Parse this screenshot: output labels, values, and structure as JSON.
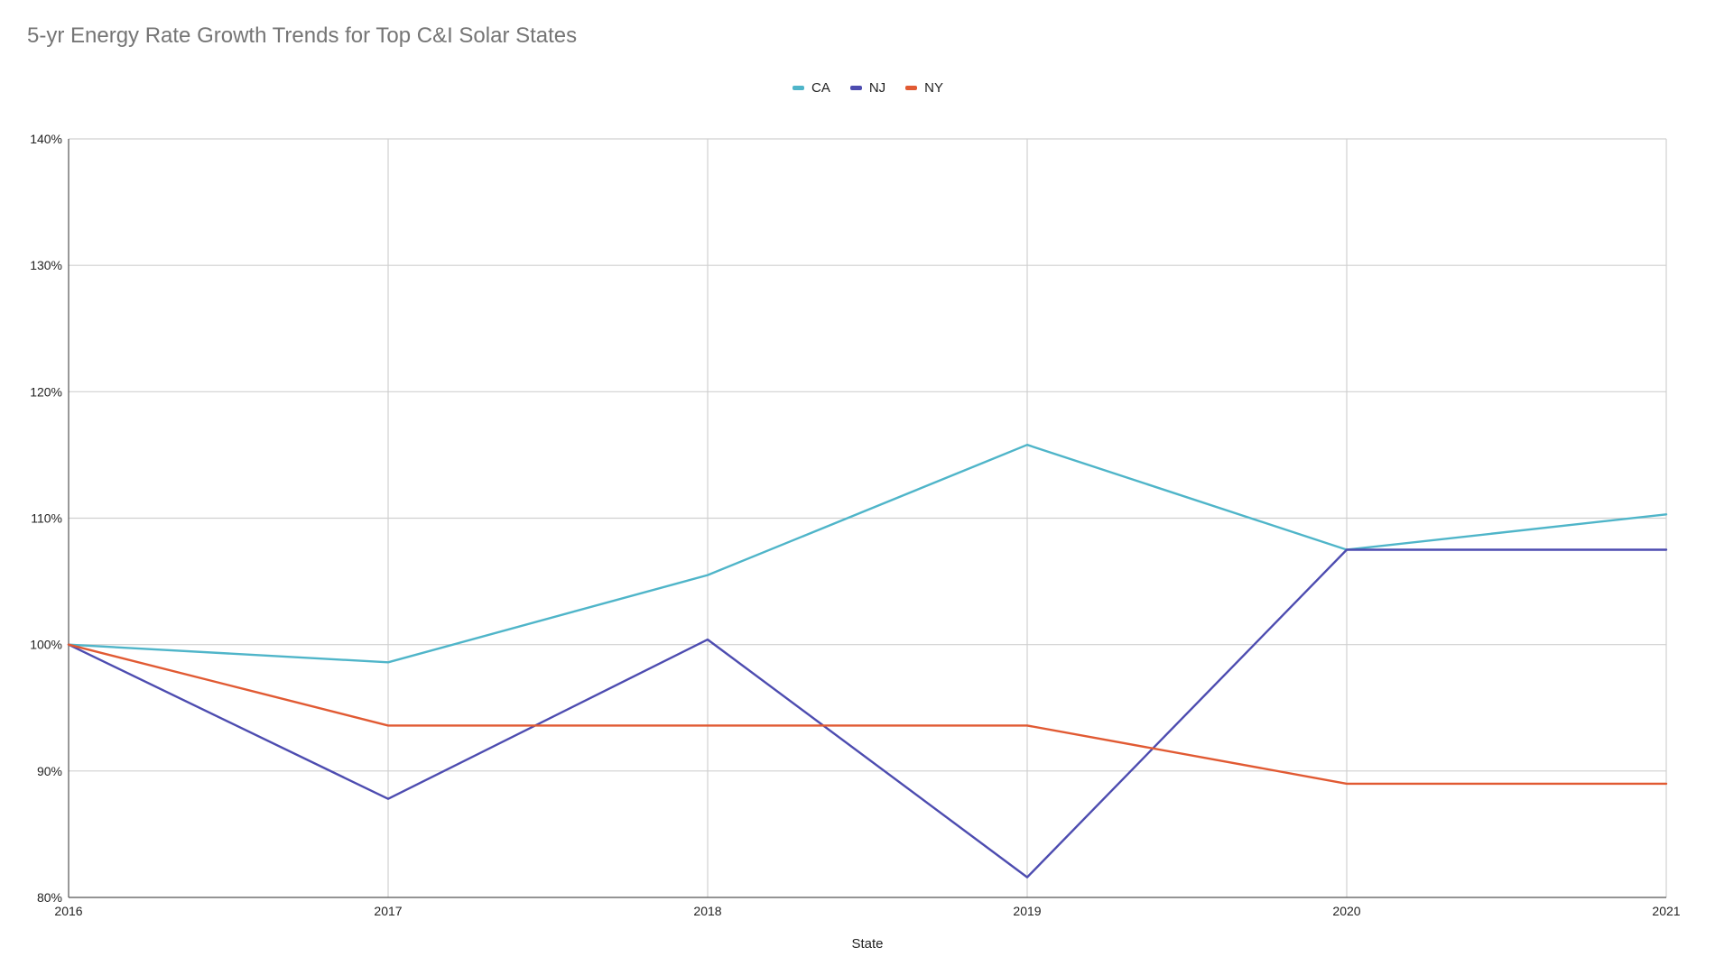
{
  "chart_data": {
    "type": "line",
    "title": "5-yr Energy Rate Growth Trends for Top C&I Solar States",
    "xlabel": "State",
    "ylabel": "",
    "x": [
      "2016",
      "2017",
      "2018",
      "2019",
      "2020",
      "2021"
    ],
    "ylim": [
      80,
      140
    ],
    "yticks": [
      80,
      90,
      100,
      110,
      120,
      130,
      140
    ],
    "ytick_labels": [
      "80%",
      "90%",
      "100%",
      "110%",
      "120%",
      "130%",
      "140%"
    ],
    "grid": true,
    "legend_position": "top-center",
    "series": [
      {
        "name": "CA",
        "color": "#4fb5c9",
        "values": [
          100,
          98.6,
          105.5,
          115.8,
          107.5,
          110.3
        ]
      },
      {
        "name": "NJ",
        "color": "#4d4cb0",
        "values": [
          100,
          87.8,
          100.4,
          81.6,
          107.5,
          107.5
        ]
      },
      {
        "name": "NY",
        "color": "#e15a33",
        "values": [
          100,
          93.6,
          93.6,
          93.6,
          89.0,
          89.0
        ]
      }
    ]
  }
}
